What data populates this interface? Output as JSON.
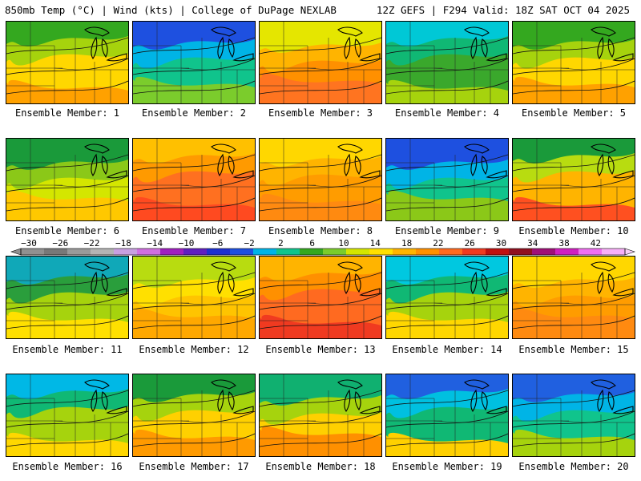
{
  "header": {
    "left": "850mb Temp (°C) | Wind (kts) | College of DuPage NEXLAB",
    "right": "12Z GEFS | F294 Valid: 18Z SAT OCT 04 2025"
  },
  "panel_caption_prefix": "Ensemble Member: ",
  "members": [
    {
      "label": "Ensemble Member: 1",
      "c": [
        "#34a81f",
        "#a6d30d",
        "#ffd700",
        "#ffa100"
      ],
      "warmth": 0.6
    },
    {
      "label": "Ensemble Member: 2",
      "c": [
        "#1e50e0",
        "#00b4e6",
        "#10c48c",
        "#7bcc2c"
      ],
      "warmth": 0.15
    },
    {
      "label": "Ensemble Member: 3",
      "c": [
        "#e5e600",
        "#ffb400",
        "#ff9000",
        "#ff7420"
      ],
      "warmth": 0.8
    },
    {
      "label": "Ensemble Member: 4",
      "c": [
        "#00c8d6",
        "#10b874",
        "#3aa82c",
        "#a6d30d"
      ],
      "warmth": 0.35
    },
    {
      "label": "Ensemble Member: 5",
      "c": [
        "#34a81f",
        "#a6d30d",
        "#ffd700",
        "#ffa100"
      ],
      "warmth": 0.6
    },
    {
      "label": "Ensemble Member: 6",
      "c": [
        "#1a9a3a",
        "#8bc818",
        "#d4e600",
        "#ffc800"
      ],
      "warmth": 0.45
    },
    {
      "label": "Ensemble Member: 7",
      "c": [
        "#ffc000",
        "#ff9a00",
        "#ff7020",
        "#ff4a20"
      ],
      "warmth": 0.9
    },
    {
      "label": "Ensemble Member: 8",
      "c": [
        "#ffd700",
        "#ffb400",
        "#ff9c00",
        "#ff8a10"
      ],
      "warmth": 0.75
    },
    {
      "label": "Ensemble Member: 9",
      "c": [
        "#1e50e0",
        "#00b4e6",
        "#10c48c",
        "#8bc818"
      ],
      "warmth": 0.2
    },
    {
      "label": "Ensemble Member: 10",
      "c": [
        "#1a9a3a",
        "#b8dc10",
        "#ffb400",
        "#ff5020"
      ],
      "warmth": 0.6
    },
    {
      "label": "Ensemble Member: 11",
      "c": [
        "#10a8b8",
        "#2a9e3c",
        "#a6d30d",
        "#ffe000"
      ],
      "warmth": 0.4
    },
    {
      "label": "Ensemble Member: 12",
      "c": [
        "#b8dc10",
        "#ffe000",
        "#ffc400",
        "#ffa800"
      ],
      "warmth": 0.65
    },
    {
      "label": "Ensemble Member: 13",
      "c": [
        "#ffb400",
        "#ff9000",
        "#ff6a20",
        "#f03a20"
      ],
      "warmth": 0.9
    },
    {
      "label": "Ensemble Member: 14",
      "c": [
        "#00c8e0",
        "#10b874",
        "#a6d30d",
        "#ffd700"
      ],
      "warmth": 0.4
    },
    {
      "label": "Ensemble Member: 15",
      "c": [
        "#ffd700",
        "#ffb400",
        "#ff9c00",
        "#ff8a10"
      ],
      "warmth": 0.75
    },
    {
      "label": "Ensemble Member: 16",
      "c": [
        "#00b8e6",
        "#10b874",
        "#a6d30d",
        "#ffd700"
      ],
      "warmth": 0.35
    },
    {
      "label": "Ensemble Member: 17",
      "c": [
        "#1a9a3a",
        "#a6d30d",
        "#ffd000",
        "#ff9a00"
      ],
      "warmth": 0.55
    },
    {
      "label": "Ensemble Member: 18",
      "c": [
        "#10b070",
        "#a6d30d",
        "#ffd000",
        "#ff9000"
      ],
      "warmth": 0.5
    },
    {
      "label": "Ensemble Member: 19",
      "c": [
        "#2060e0",
        "#00c0e0",
        "#10b874",
        "#ffd000"
      ],
      "warmth": 0.3
    },
    {
      "label": "Ensemble Member: 20",
      "c": [
        "#2060e0",
        "#00b4e6",
        "#10c48c",
        "#a6d30d"
      ],
      "warmth": 0.2
    }
  ],
  "colorbar": {
    "ticks": [
      "−30",
      "−26",
      "−22",
      "−18",
      "−14",
      "−10",
      "−6",
      "−2",
      "2",
      "6",
      "10",
      "14",
      "18",
      "22",
      "26",
      "30",
      "34",
      "38",
      "42"
    ],
    "colors": [
      "#909090",
      "#787878",
      "#9a9a9a",
      "#b4b4b4",
      "#c8a0e0",
      "#d070e0",
      "#a020c0",
      "#6020c0",
      "#1e30d0",
      "#1e50e0",
      "#00b4e6",
      "#10c48c",
      "#34a81f",
      "#7bcc2c",
      "#d4e600",
      "#ffe000",
      "#ffb400",
      "#ff9000",
      "#ff6a20",
      "#f03a20",
      "#c01010",
      "#901020",
      "#a01078",
      "#d020c0",
      "#f070f0",
      "#f8b0f8"
    ]
  }
}
